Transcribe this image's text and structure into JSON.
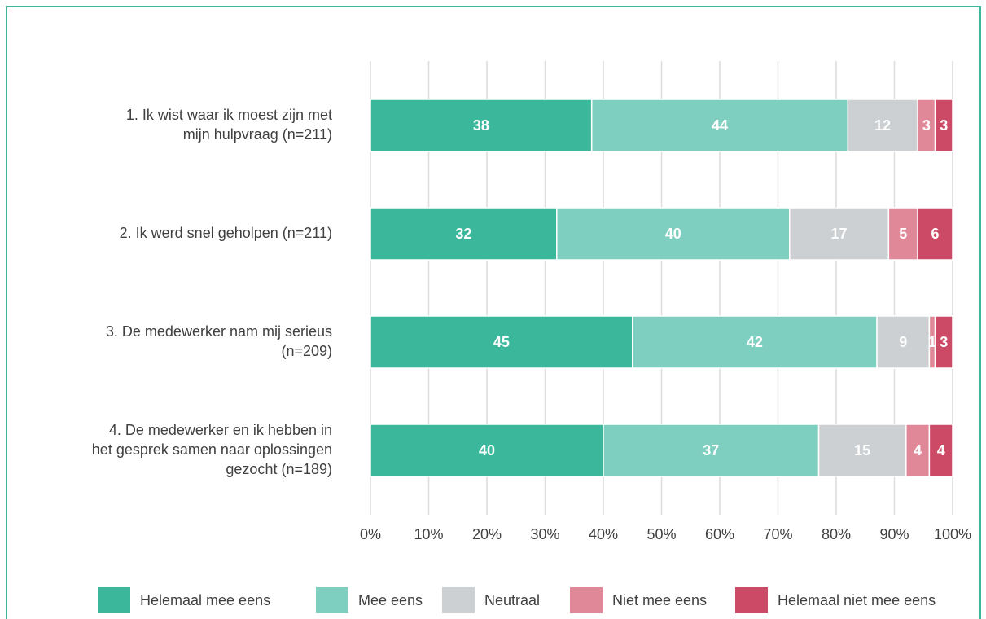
{
  "chart_data": {
    "type": "stacked-bar-horizontal",
    "categories": [
      [
        "1. Ik wist waar ik moest zijn met",
        "mijn hulpvraag (n=211)"
      ],
      [
        "2. Ik werd snel geholpen (n=211)"
      ],
      [
        "3. De medewerker nam mij serieus",
        "(n=209)"
      ],
      [
        "4. De medewerker en ik hebben in",
        "het gesprek samen naar oplossingen",
        "gezocht (n=189)"
      ]
    ],
    "series": [
      {
        "name": "Helemaal mee eens",
        "color": "#3bb89c",
        "values": [
          38,
          32,
          45,
          40
        ]
      },
      {
        "name": "Mee eens",
        "color": "#7ecfbf",
        "values": [
          44,
          40,
          42,
          37
        ]
      },
      {
        "name": "Neutraal",
        "color": "#ccd0d2",
        "values": [
          12,
          17,
          9,
          15
        ]
      },
      {
        "name": "Niet mee eens",
        "color": "#e08898",
        "values": [
          3,
          5,
          1,
          4
        ]
      },
      {
        "name": "Helemaal niet mee eens",
        "color": "#cc4a65",
        "values": [
          3,
          6,
          3,
          4
        ]
      }
    ],
    "xlim": [
      0,
      100
    ],
    "xticks": [
      {
        "value": 0,
        "label": "0%"
      },
      {
        "value": 10,
        "label": "10%"
      },
      {
        "value": 20,
        "label": "20%"
      },
      {
        "value": 30,
        "label": "30%"
      },
      {
        "value": 40,
        "label": "40%"
      },
      {
        "value": 50,
        "label": "50%"
      },
      {
        "value": 60,
        "label": "60%"
      },
      {
        "value": 70,
        "label": "70%"
      },
      {
        "value": 80,
        "label": "80%"
      },
      {
        "value": 90,
        "label": "90%"
      },
      {
        "value": 100,
        "label": "100%"
      }
    ],
    "grid": true,
    "legend": "bottom"
  }
}
